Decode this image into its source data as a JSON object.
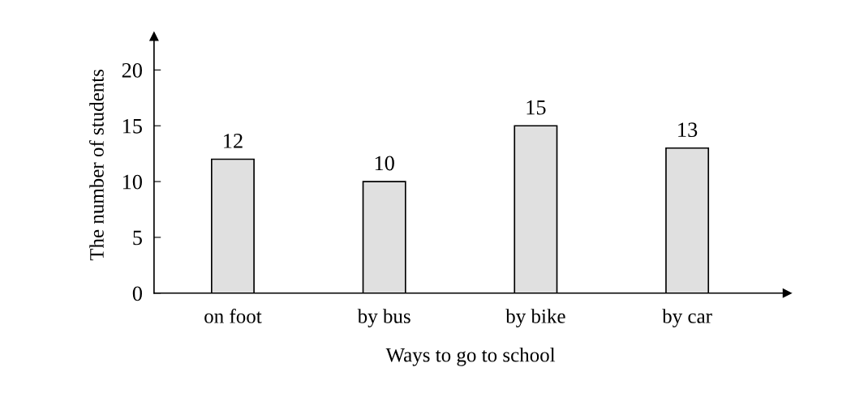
{
  "chart_data": {
    "type": "bar",
    "xlabel": "Ways to go to school",
    "ylabel": "The number of students",
    "categories": [
      "on foot",
      "by bus",
      "by bike",
      "by car"
    ],
    "values": [
      12,
      10,
      15,
      13
    ],
    "color": "#e0e0e0",
    "ylim": [
      0,
      23
    ],
    "yticks": [
      0,
      5,
      10,
      15,
      20
    ],
    "data_labels": true,
    "grid": false,
    "legend": false
  }
}
